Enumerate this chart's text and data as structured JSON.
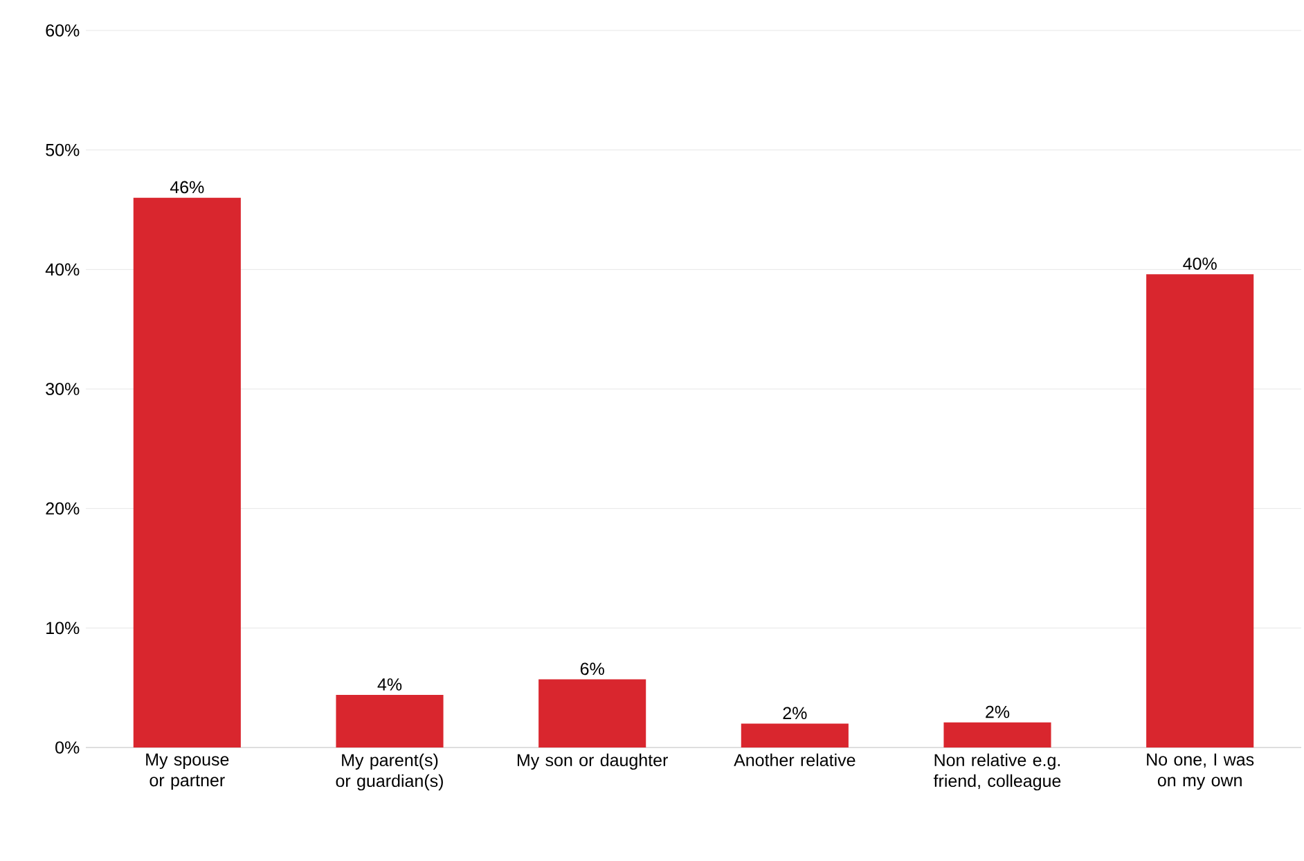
{
  "chart_data": {
    "type": "bar",
    "categories": [
      "My spouse or partner",
      "My parent(s) or guardian(s)",
      "My son or daughter",
      "Another relative",
      "Non relative e.g. friend, colleague",
      "No one, I was on my own"
    ],
    "values": [
      46,
      4.4,
      5.7,
      2,
      2.1,
      39.6
    ],
    "value_labels": [
      "46%",
      "4%",
      "6%",
      "2%",
      "2%",
      "40%"
    ],
    "color": "#d9262e",
    "ylim": [
      0,
      60
    ],
    "yticks": [
      {
        "value": 0,
        "label": "0%"
      },
      {
        "value": 10,
        "label": "10%"
      },
      {
        "value": 20,
        "label": "20%"
      },
      {
        "value": 30,
        "label": "30%"
      },
      {
        "value": 40,
        "label": "40%"
      },
      {
        "value": 50,
        "label": "50%"
      },
      {
        "value": 60,
        "label": "60%"
      }
    ],
    "grid": "y"
  }
}
